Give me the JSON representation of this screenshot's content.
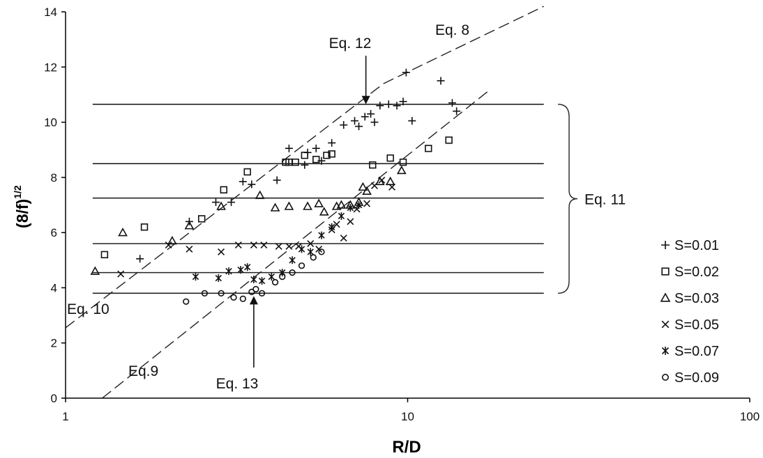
{
  "chart_data": {
    "type": "scatter",
    "title": "",
    "xlabel": "R/D",
    "ylabel": "(8/f)",
    "ylabel_sup": "1/2",
    "xscale": "log",
    "xlim": [
      1,
      100
    ],
    "ylim": [
      0,
      14
    ],
    "xticks": [
      1,
      10,
      100
    ],
    "xtick_labels": [
      "1",
      "10",
      "100"
    ],
    "yticks": [
      0,
      2,
      4,
      6,
      8,
      10,
      12,
      14
    ],
    "ytick_labels": [
      "0",
      "2",
      "4",
      "6",
      "8",
      "10",
      "12",
      "14"
    ],
    "grid": false,
    "legend_position": "right",
    "series": [
      {
        "name": "S=0.01",
        "marker": "plus",
        "points": [
          [
            1.65,
            5.05
          ],
          [
            2.3,
            6.4
          ],
          [
            2.75,
            7.1
          ],
          [
            3.05,
            7.1
          ],
          [
            3.3,
            7.85
          ],
          [
            3.5,
            7.75
          ],
          [
            4.15,
            7.9
          ],
          [
            4.5,
            9.05
          ],
          [
            5.0,
            8.45
          ],
          [
            5.1,
            8.9
          ],
          [
            5.4,
            9.05
          ],
          [
            5.6,
            8.6
          ],
          [
            6.0,
            9.25
          ],
          [
            6.5,
            9.9
          ],
          [
            7.0,
            10.05
          ],
          [
            7.2,
            9.85
          ],
          [
            7.5,
            10.2
          ],
          [
            7.8,
            10.3
          ],
          [
            8.0,
            10.0
          ],
          [
            8.3,
            10.6
          ],
          [
            8.8,
            10.65
          ],
          [
            9.3,
            10.6
          ],
          [
            9.7,
            10.75
          ],
          [
            9.9,
            11.8
          ],
          [
            10.3,
            10.05
          ],
          [
            12.5,
            11.5
          ],
          [
            13.5,
            10.7
          ],
          [
            13.9,
            10.4
          ]
        ]
      },
      {
        "name": "S=0.02",
        "marker": "square",
        "points": [
          [
            1.3,
            5.2
          ],
          [
            1.7,
            6.2
          ],
          [
            2.5,
            6.5
          ],
          [
            2.9,
            7.55
          ],
          [
            3.4,
            8.2
          ],
          [
            4.4,
            8.55
          ],
          [
            4.5,
            8.55
          ],
          [
            4.7,
            8.55
          ],
          [
            5.0,
            8.8
          ],
          [
            5.4,
            8.65
          ],
          [
            5.8,
            8.8
          ],
          [
            6.0,
            8.85
          ],
          [
            7.9,
            8.45
          ],
          [
            8.9,
            8.7
          ],
          [
            9.7,
            8.55
          ],
          [
            11.5,
            9.05
          ],
          [
            13.2,
            9.35
          ]
        ]
      },
      {
        "name": "S=0.03",
        "marker": "triangle",
        "points": [
          [
            1.22,
            4.6
          ],
          [
            1.47,
            6.0
          ],
          [
            2.05,
            5.7
          ],
          [
            2.3,
            6.25
          ],
          [
            2.85,
            6.95
          ],
          [
            3.7,
            7.35
          ],
          [
            4.1,
            6.9
          ],
          [
            4.5,
            6.95
          ],
          [
            5.1,
            6.95
          ],
          [
            5.5,
            7.05
          ],
          [
            5.7,
            6.75
          ],
          [
            6.2,
            6.95
          ],
          [
            6.4,
            7.0
          ],
          [
            6.8,
            7.0
          ],
          [
            7.2,
            7.1
          ],
          [
            7.4,
            7.65
          ],
          [
            7.6,
            7.5
          ],
          [
            8.3,
            7.85
          ],
          [
            8.9,
            7.85
          ],
          [
            9.6,
            8.25
          ]
        ]
      },
      {
        "name": "S=0.05",
        "marker": "x",
        "points": [
          [
            1.45,
            4.5
          ],
          [
            2.0,
            5.55
          ],
          [
            2.3,
            5.4
          ],
          [
            2.85,
            5.3
          ],
          [
            3.2,
            5.55
          ],
          [
            3.55,
            5.55
          ],
          [
            3.8,
            5.55
          ],
          [
            4.2,
            5.5
          ],
          [
            4.5,
            5.5
          ],
          [
            4.8,
            5.5
          ],
          [
            5.2,
            5.6
          ],
          [
            5.5,
            5.4
          ],
          [
            6.0,
            6.1
          ],
          [
            6.2,
            6.3
          ],
          [
            6.5,
            5.8
          ],
          [
            6.8,
            6.4
          ],
          [
            7.1,
            6.85
          ],
          [
            7.6,
            7.05
          ],
          [
            8.0,
            7.7
          ],
          [
            8.4,
            7.9
          ],
          [
            9.0,
            7.65
          ]
        ]
      },
      {
        "name": "S=0.07",
        "marker": "asterisk",
        "points": [
          [
            2.4,
            4.4
          ],
          [
            2.8,
            4.35
          ],
          [
            3.0,
            4.6
          ],
          [
            3.25,
            4.65
          ],
          [
            3.4,
            4.75
          ],
          [
            3.55,
            4.3
          ],
          [
            3.75,
            4.25
          ],
          [
            4.0,
            4.4
          ],
          [
            4.3,
            4.55
          ],
          [
            4.6,
            5.0
          ],
          [
            4.9,
            5.4
          ],
          [
            5.2,
            5.3
          ],
          [
            5.6,
            5.9
          ],
          [
            6.0,
            6.2
          ],
          [
            6.4,
            6.6
          ],
          [
            6.8,
            6.9
          ],
          [
            7.2,
            7.0
          ]
        ]
      },
      {
        "name": "S=0.09",
        "marker": "circle",
        "points": [
          [
            2.25,
            3.5
          ],
          [
            2.55,
            3.8
          ],
          [
            2.85,
            3.8
          ],
          [
            3.1,
            3.65
          ],
          [
            3.3,
            3.6
          ],
          [
            3.5,
            3.85
          ],
          [
            3.6,
            3.95
          ],
          [
            3.75,
            3.8
          ],
          [
            4.1,
            4.2
          ],
          [
            4.3,
            4.4
          ],
          [
            4.6,
            4.55
          ],
          [
            4.9,
            4.8
          ],
          [
            5.3,
            5.1
          ],
          [
            5.6,
            5.3
          ]
        ]
      }
    ],
    "horizontal_lines": [
      {
        "y": 10.65,
        "x_from": 1.2,
        "x_to": 25
      },
      {
        "y": 8.5,
        "x_from": 1.2,
        "x_to": 25
      },
      {
        "y": 7.25,
        "x_from": 1.2,
        "x_to": 25
      },
      {
        "y": 5.6,
        "x_from": 1.2,
        "x_to": 25
      },
      {
        "y": 4.55,
        "x_from": 1.2,
        "x_to": 25
      },
      {
        "y": 3.8,
        "x_from": 1.2,
        "x_to": 25
      }
    ],
    "dashed_curves": [
      {
        "points": [
          [
            1.0,
            2.55
          ],
          [
            8.5,
            11.4
          ],
          [
            25,
            14.2
          ]
        ]
      },
      {
        "points": [
          [
            1.28,
            0
          ],
          [
            17.5,
            11.2
          ]
        ]
      }
    ],
    "annotations": [
      {
        "text": "Eq. 12",
        "arrow_to": [
          7.55,
          10.65
        ]
      },
      {
        "text": "Eq. 8"
      },
      {
        "text": "Eq. 11"
      },
      {
        "text": "Eq. 10"
      },
      {
        "text": "Eq.9"
      },
      {
        "text": "Eq. 13",
        "arrow_to": [
          3.55,
          3.75
        ]
      }
    ]
  }
}
